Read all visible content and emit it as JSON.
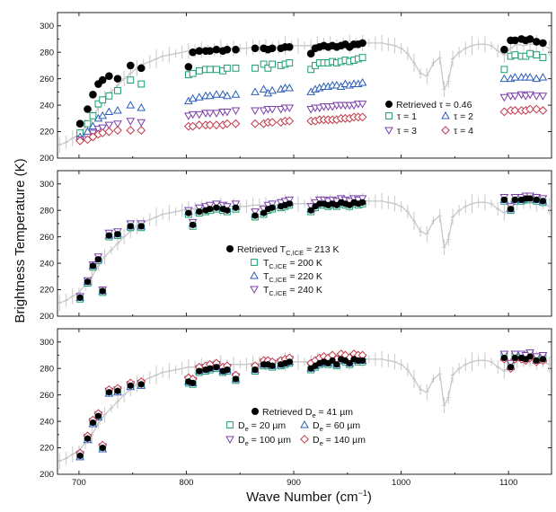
{
  "chart_data": {
    "type": "scatter",
    "xlabel": "Wave Number (cm",
    "xlabel_sup": "−1",
    "xlabel_end": ")",
    "ylabel": "Brightness Temperature (K)",
    "xlim": [
      680,
      1140
    ],
    "ylim": [
      200,
      310
    ],
    "x_ticks": [
      700,
      800,
      900,
      1000,
      1100
    ],
    "y_ticks": [
      200,
      220,
      240,
      260,
      280,
      300
    ],
    "colors": {
      "observed": "#c8c8c8",
      "retrieved": "#000000",
      "green": "#1a9e6e",
      "blue": "#2c5db8",
      "purple": "#7a3fa8",
      "red": "#c23a4a"
    },
    "observed_spectrum": {
      "x": [
        682,
        688,
        694,
        700,
        706,
        712,
        718,
        724,
        730,
        736,
        742,
        748,
        754,
        760,
        766,
        772,
        778,
        784,
        790,
        796,
        802,
        808,
        814,
        820,
        826,
        832,
        838,
        844,
        850,
        856,
        862,
        868,
        874,
        880,
        886,
        892,
        898,
        904,
        910,
        916,
        922,
        928,
        934,
        940,
        946,
        952,
        958,
        964,
        970,
        976,
        982,
        988,
        994,
        1000,
        1006,
        1012,
        1018,
        1024,
        1030,
        1036,
        1040,
        1044,
        1048,
        1054,
        1060,
        1066,
        1072,
        1078,
        1084,
        1090,
        1096,
        1102,
        1108,
        1114,
        1120,
        1126,
        1132,
        1138
      ],
      "y": [
        210,
        212,
        215,
        218,
        224,
        230,
        238,
        245,
        250,
        255,
        260,
        264,
        268,
        271,
        273,
        275,
        277,
        278,
        279,
        280,
        281,
        281,
        282,
        282,
        282,
        283,
        283,
        283,
        283,
        283,
        284,
        284,
        284,
        284,
        284,
        285,
        285,
        285,
        285,
        285,
        286,
        286,
        286,
        286,
        286,
        286,
        287,
        287,
        287,
        287,
        287,
        286,
        285,
        283,
        279,
        272,
        264,
        262,
        272,
        276,
        252,
        258,
        275,
        280,
        283,
        285,
        286,
        286,
        285,
        281,
        278,
        283,
        286,
        285,
        286,
        286,
        285,
        283
      ]
    },
    "spread": [
      6,
      5,
      6,
      4,
      5,
      7,
      4,
      6,
      3,
      5
    ],
    "x_obs": [
      701,
      708,
      713,
      718,
      722,
      728,
      736,
      748,
      758,
      802,
      806,
      812,
      818,
      822,
      828,
      834,
      838,
      846,
      864,
      872,
      876,
      880,
      888,
      892,
      896,
      916,
      920,
      924,
      928,
      932,
      936,
      940,
      944,
      948,
      952,
      956,
      960,
      964,
      1096,
      1102,
      1106,
      1112,
      1116,
      1120,
      1126,
      1132
    ],
    "panels": [
      {
        "name": "optical-depth",
        "retrieved": [
          226,
          237,
          248,
          256,
          259,
          262,
          260,
          270,
          268,
          269,
          280,
          281,
          281,
          281,
          282,
          281,
          282,
          282,
          283,
          283,
          282,
          283,
          283,
          284,
          284,
          279,
          283,
          284,
          285,
          284,
          285,
          284,
          285,
          286,
          284,
          286,
          286,
          287,
          282,
          289,
          289,
          290,
          289,
          290,
          288,
          287
        ],
        "series": [
          {
            "label": "τ = 1",
            "marker": "square",
            "color": "green",
            "values": [
              219,
              226,
              232,
              241,
              244,
              247,
              251,
              259,
              256,
              263,
              264,
              266,
              267,
              267,
              267,
              266,
              268,
              268,
              268,
              271,
              268,
              271,
              270,
              271,
              272,
              267,
              270,
              272,
              272,
              272,
              273,
              272,
              273,
              274,
              273,
              274,
              275,
              276,
              267,
              277,
              278,
              277,
              277,
              279,
              278,
              276
            ]
          },
          {
            "label": "τ = 2",
            "marker": "triangle-up",
            "color": "blue",
            "values": [
              216,
              220,
              224,
              230,
              232,
              235,
              236,
              240,
              238,
              243,
              245,
              246,
              247,
              247,
              248,
              248,
              247,
              248,
              250,
              252,
              249,
              251,
              252,
              253,
              253,
              250,
              252,
              253,
              254,
              254,
              255,
              255,
              254,
              256,
              255,
              256,
              256,
              257,
              260,
              260,
              261,
              261,
              261,
              261,
              260,
              261
            ]
          },
          {
            "label": "τ = 3",
            "marker": "triangle-down",
            "color": "purple",
            "values": [
              214,
              216,
              219,
              222,
              223,
              225,
              226,
              228,
              227,
              232,
              233,
              233,
              234,
              234,
              234,
              235,
              235,
              236,
              236,
              236,
              237,
              237,
              237,
              238,
              238,
              237,
              238,
              238,
              239,
              239,
              239,
              240,
              240,
              240,
              240,
              240,
              241,
              241,
              246,
              247,
              247,
              248,
              247,
              248,
              247,
              247
            ]
          },
          {
            "label": "τ = 4",
            "marker": "diamond",
            "color": "red",
            "values": [
              213,
              214,
              216,
              218,
              219,
              220,
              221,
              221,
              221,
              224,
              224,
              225,
              225,
              225,
              225,
              225,
              226,
              226,
              226,
              226,
              227,
              227,
              227,
              228,
              228,
              228,
              228,
              229,
              229,
              229,
              229,
              229,
              230,
              230,
              230,
              231,
              231,
              231,
              235,
              236,
              236,
              236,
              236,
              237,
              237,
              236
            ]
          }
        ],
        "legend": {
          "retrieved_label": "Retrieved τ = 0.46",
          "entries": [
            "τ = 1",
            "τ = 2",
            "τ = 3",
            "τ = 4"
          ]
        }
      },
      {
        "name": "ice-cloud-temperature",
        "retrieved": [
          214,
          226,
          238,
          243,
          219,
          261,
          262,
          268,
          268,
          278,
          269,
          279,
          280,
          281,
          282,
          281,
          280,
          282,
          276,
          278,
          281,
          282,
          283,
          284,
          285,
          280,
          283,
          285,
          285,
          284,
          285,
          284,
          286,
          285,
          284,
          286,
          285,
          286,
          288,
          281,
          288,
          288,
          289,
          289,
          288,
          287
        ],
        "offsets": [
          [
            -1,
            0,
            1
          ],
          [
            -1,
            0,
            1
          ],
          [
            -1,
            0,
            1
          ],
          [
            -1,
            0,
            2
          ],
          [
            -1,
            0,
            1
          ],
          [
            -1,
            0,
            2
          ],
          [
            -1,
            0,
            2
          ],
          [
            -1,
            0,
            2
          ],
          [
            -1,
            0,
            2
          ],
          [
            -1,
            1,
            2
          ],
          [
            -1,
            1,
            2
          ],
          [
            -1,
            1,
            3
          ],
          [
            -1,
            1,
            3
          ],
          [
            -1,
            1,
            3
          ],
          [
            -1,
            1,
            3
          ],
          [
            -1,
            1,
            3
          ],
          [
            -1,
            1,
            3
          ],
          [
            -1,
            1,
            3
          ],
          [
            -1,
            1,
            3
          ],
          [
            -1,
            1,
            3
          ],
          [
            -1,
            1,
            3
          ],
          [
            -1,
            1,
            3
          ],
          [
            -1,
            1,
            3
          ],
          [
            -1,
            1,
            3
          ],
          [
            -1,
            1,
            3
          ],
          [
            -1,
            1,
            3
          ],
          [
            -1,
            1,
            3
          ],
          [
            -1,
            1,
            3
          ],
          [
            -1,
            1,
            3
          ],
          [
            -1,
            1,
            3
          ],
          [
            -1,
            1,
            3
          ],
          [
            -1,
            1,
            3
          ],
          [
            -1,
            1,
            3
          ],
          [
            -1,
            1,
            3
          ],
          [
            -1,
            1,
            3
          ],
          [
            -1,
            1,
            3
          ],
          [
            -1,
            1,
            3
          ],
          [
            -1,
            1,
            3
          ],
          [
            -1,
            0,
            2
          ],
          [
            -1,
            0,
            2
          ],
          [
            -1,
            0,
            2
          ],
          [
            -1,
            0,
            2
          ],
          [
            -1,
            0,
            2
          ],
          [
            -1,
            0,
            2
          ],
          [
            -1,
            0,
            2
          ],
          [
            -1,
            0,
            2
          ]
        ],
        "series": [
          {
            "label_main": "T",
            "label_sub": "C,ICE",
            "label_rest": " = 200 K",
            "marker": "square",
            "color": "green"
          },
          {
            "label_main": "T",
            "label_sub": "C,ICE",
            "label_rest": " = 220 K",
            "marker": "triangle-up",
            "color": "blue"
          },
          {
            "label_main": "T",
            "label_sub": "C,ICE",
            "label_rest": " = 240 K",
            "marker": "triangle-down",
            "color": "purple"
          }
        ],
        "legend": {
          "retrieved_main": "Retrieved T",
          "retrieved_sub": "C,ICE",
          "retrieved_rest": " = 213 K"
        }
      },
      {
        "name": "effective-diameter",
        "retrieved": [
          214,
          227,
          239,
          244,
          220,
          262,
          263,
          267,
          268,
          270,
          269,
          278,
          279,
          280,
          281,
          278,
          279,
          272,
          279,
          283,
          283,
          282,
          283,
          284,
          285,
          280,
          282,
          284,
          285,
          284,
          286,
          283,
          287,
          286,
          284,
          287,
          286,
          286,
          288,
          281,
          288,
          288,
          287,
          289,
          286,
          287
        ],
        "offsets": [
          [
            0,
            -1,
            1,
            2
          ],
          [
            0,
            -1,
            1,
            2
          ],
          [
            0,
            -1,
            1,
            2
          ],
          [
            0,
            -1,
            1,
            2
          ],
          [
            0,
            -1,
            1,
            2
          ],
          [
            0,
            -1,
            1,
            2
          ],
          [
            0,
            -1,
            1,
            2
          ],
          [
            0,
            -1,
            1,
            2
          ],
          [
            0,
            -1,
            1,
            2
          ],
          [
            -1,
            0,
            2,
            3
          ],
          [
            -1,
            0,
            2,
            3
          ],
          [
            -1,
            0,
            2,
            3
          ],
          [
            -1,
            0,
            2,
            3
          ],
          [
            -1,
            0,
            2,
            3
          ],
          [
            -1,
            0,
            2,
            3
          ],
          [
            -1,
            0,
            2,
            3
          ],
          [
            -1,
            0,
            2,
            3
          ],
          [
            -1,
            0,
            2,
            3
          ],
          [
            -1,
            0,
            2,
            3
          ],
          [
            -1,
            0,
            2,
            3
          ],
          [
            -1,
            0,
            2,
            3
          ],
          [
            -1,
            0,
            2,
            3
          ],
          [
            -1,
            0,
            2,
            3
          ],
          [
            -1,
            0,
            2,
            3
          ],
          [
            -1,
            0,
            2,
            3
          ],
          [
            -1,
            0,
            2,
            4
          ],
          [
            -1,
            0,
            2,
            4
          ],
          [
            -1,
            0,
            2,
            4
          ],
          [
            -1,
            0,
            2,
            4
          ],
          [
            -1,
            0,
            2,
            4
          ],
          [
            -1,
            0,
            2,
            4
          ],
          [
            -1,
            0,
            2,
            4
          ],
          [
            -1,
            0,
            2,
            4
          ],
          [
            -1,
            0,
            2,
            4
          ],
          [
            -1,
            0,
            2,
            4
          ],
          [
            -1,
            0,
            2,
            4
          ],
          [
            -1,
            0,
            2,
            4
          ],
          [
            -1,
            0,
            2,
            4
          ],
          [
            2,
            0,
            3,
            -1
          ],
          [
            2,
            0,
            3,
            -1
          ],
          [
            2,
            0,
            3,
            -1
          ],
          [
            2,
            0,
            3,
            -1
          ],
          [
            2,
            0,
            3,
            -1
          ],
          [
            2,
            0,
            3,
            -1
          ],
          [
            2,
            0,
            3,
            -1
          ],
          [
            2,
            0,
            3,
            -1
          ]
        ],
        "series": [
          {
            "label_main": "D",
            "label_sub": "e",
            "label_rest": " = 20 µm",
            "marker": "square",
            "color": "green"
          },
          {
            "label_main": "D",
            "label_sub": "e",
            "label_rest": " = 60 µm",
            "marker": "triangle-up",
            "color": "blue"
          },
          {
            "label_main": "D",
            "label_sub": "e",
            "label_rest": " = 100 µm",
            "marker": "triangle-down",
            "color": "purple"
          },
          {
            "label_main": "D",
            "label_sub": "e",
            "label_rest": " = 140 µm",
            "marker": "diamond",
            "color": "red"
          }
        ],
        "legend": {
          "retrieved_main": "Retrieved D",
          "retrieved_sub": "e",
          "retrieved_rest": " = 41 µm"
        }
      }
    ]
  }
}
